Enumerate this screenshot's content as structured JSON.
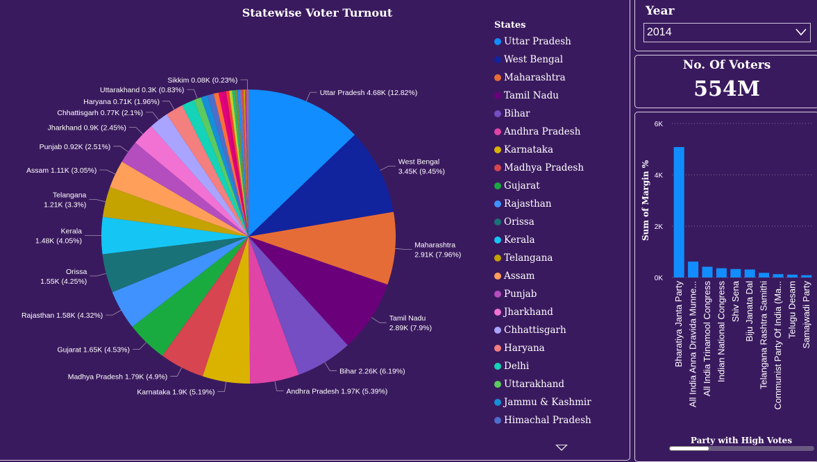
{
  "pie_panel": {
    "title": "Statewise Voter Turnout"
  },
  "legend": {
    "title": "States",
    "items": [
      {
        "label": "Uttar Pradesh",
        "color": "#118DFF"
      },
      {
        "label": "West Bengal",
        "color": "#12239E"
      },
      {
        "label": "Maharashtra",
        "color": "#E66C37"
      },
      {
        "label": "Tamil Nadu",
        "color": "#6B007B"
      },
      {
        "label": "Bihar",
        "color": "#744EC2"
      },
      {
        "label": "Andhra Pradesh",
        "color": "#E044A7"
      },
      {
        "label": "Karnataka",
        "color": "#D9B300"
      },
      {
        "label": "Madhya Pradesh",
        "color": "#D64550"
      },
      {
        "label": "Gujarat",
        "color": "#1AAB40"
      },
      {
        "label": "Rajasthan",
        "color": "#4092FF"
      },
      {
        "label": "Orissa",
        "color": "#197278"
      },
      {
        "label": "Kerala",
        "color": "#15C6F4"
      },
      {
        "label": "Telangana",
        "color": "#C4A200"
      },
      {
        "label": "Assam",
        "color": "#FF9F5A"
      },
      {
        "label": "Punjab",
        "color": "#B44EBF"
      },
      {
        "label": "Jharkhand",
        "color": "#F272D3"
      },
      {
        "label": "Chhattisgarh",
        "color": "#A9A4FF"
      },
      {
        "label": "Haryana",
        "color": "#F47F7F"
      },
      {
        "label": "Delhi",
        "color": "#15D3B8"
      },
      {
        "label": "Uttarakhand",
        "color": "#5CCB5F"
      },
      {
        "label": "Jammu & Kashmir",
        "color": "#1590D8"
      },
      {
        "label": "Himachal Pradesh",
        "color": "#4D6EC9"
      }
    ]
  },
  "year_filter": {
    "title": "Year",
    "selected": "2014"
  },
  "voters_card": {
    "title": "No. Of Voters",
    "value": "554M"
  },
  "bar_panel": {
    "ylabel": "Sum of Margin %",
    "xlabel": "Party with High Votes"
  },
  "chart_data": [
    {
      "type": "pie",
      "title": "Statewise Voter Turnout",
      "legend_title": "States",
      "legend_position": "right",
      "slices": [
        {
          "label": "Uttar Pradesh",
          "value": 4.68,
          "text": "Uttar Pradesh 4.68K (12.82%)",
          "color": "#118DFF"
        },
        {
          "label": "West Bengal",
          "value": 3.45,
          "text": "West Bengal 3.45K (9.45%)",
          "color": "#12239E"
        },
        {
          "label": "Maharashtra",
          "value": 2.91,
          "text": "Maharashtra 2.91K (7.96%)",
          "color": "#E66C37"
        },
        {
          "label": "Tamil Nadu",
          "value": 2.89,
          "text": "Tamil Nadu 2.89K (7.9%)",
          "color": "#6B007B"
        },
        {
          "label": "Bihar",
          "value": 2.26,
          "text": "Bihar 2.26K (6.19%)",
          "color": "#744EC2"
        },
        {
          "label": "Andhra Pradesh",
          "value": 1.97,
          "text": "Andhra Pradesh 1.97K (5.39%)",
          "color": "#E044A7"
        },
        {
          "label": "Karnataka",
          "value": 1.9,
          "text": "Karnataka 1.9K (5.19%)",
          "color": "#D9B300"
        },
        {
          "label": "Madhya Pradesh",
          "value": 1.79,
          "text": "Madhya Pradesh 1.79K (4.9%)",
          "color": "#D64550"
        },
        {
          "label": "Gujarat",
          "value": 1.65,
          "text": "Gujarat 1.65K (4.53%)",
          "color": "#1AAB40"
        },
        {
          "label": "Rajasthan",
          "value": 1.58,
          "text": "Rajasthan 1.58K (4.32%)",
          "color": "#4092FF"
        },
        {
          "label": "Orissa",
          "value": 1.55,
          "text": "Orissa 1.55K (4.25%)",
          "color": "#197278"
        },
        {
          "label": "Kerala",
          "value": 1.48,
          "text": "Kerala 1.48K (4.05%)",
          "color": "#15C6F4"
        },
        {
          "label": "Telangana",
          "value": 1.21,
          "text": "Telangana 1.21K (3.3%)",
          "color": "#C4A200"
        },
        {
          "label": "Assam",
          "value": 1.11,
          "text": "Assam 1.11K (3.05%)",
          "color": "#FF9F5A"
        },
        {
          "label": "Punjab",
          "value": 0.92,
          "text": "Punjab 0.92K (2.51%)",
          "color": "#B44EBF"
        },
        {
          "label": "Jharkhand",
          "value": 0.9,
          "text": "Jharkhand 0.9K (2.45%)",
          "color": "#F272D3"
        },
        {
          "label": "Chhattisgarh",
          "value": 0.77,
          "text": "Chhattisgarh 0.77K (2.1%)",
          "color": "#A9A4FF"
        },
        {
          "label": "Haryana",
          "value": 0.71,
          "text": "Haryana 0.71K (1.96%)",
          "color": "#F47F7F"
        },
        {
          "label": "Delhi",
          "value": 0.5,
          "text": "",
          "color": "#15D3B8"
        },
        {
          "label": "Uttarakhand",
          "value": 0.3,
          "text": "Uttarakhand 0.3K (0.83%)",
          "color": "#5CCB5F"
        },
        {
          "label": "Jammu & Kashmir",
          "value": 0.27,
          "text": "",
          "color": "#1590D8"
        },
        {
          "label": "Himachal Pradesh",
          "value": 0.25,
          "text": "",
          "color": "#4D6EC9"
        },
        {
          "label": "",
          "value": 0.2,
          "text": "",
          "color": "#FF6F3C"
        },
        {
          "label": "",
          "value": 0.16,
          "text": "",
          "color": "#E5007A"
        },
        {
          "label": "",
          "value": 0.14,
          "text": "",
          "color": "#D6007C"
        },
        {
          "label": "",
          "value": 0.12,
          "text": "",
          "color": "#FF3B30"
        },
        {
          "label": "",
          "value": 0.12,
          "text": "",
          "color": "#B8D430"
        },
        {
          "label": "",
          "value": 0.11,
          "text": "",
          "color": "#2BB673"
        },
        {
          "label": "",
          "value": 0.1,
          "text": "",
          "color": "#7A8C3A"
        },
        {
          "label": "",
          "value": 0.09,
          "text": "",
          "color": "#1E90FF"
        },
        {
          "label": "",
          "value": 0.08,
          "text": "",
          "color": "#8B6FA8"
        },
        {
          "label": "",
          "value": 0.07,
          "text": "",
          "color": "#E14A4A"
        },
        {
          "label": "",
          "value": 0.06,
          "text": "",
          "color": "#C3A000"
        },
        {
          "label": "",
          "value": 0.06,
          "text": "",
          "color": "#9A3FBF"
        },
        {
          "label": "Sikkim",
          "value": 0.08,
          "text": "Sikkim 0.08K (0.23%)",
          "color": "#E4574D"
        }
      ]
    },
    {
      "type": "bar",
      "xlabel": "Party with High Votes",
      "ylabel": "Sum of Margin %",
      "ylim": [
        0,
        6000
      ],
      "yticks": [
        "0K",
        "2K",
        "4K",
        "6K"
      ],
      "bar_color": "#118DFF",
      "categories": [
        "Bharatiya Janta Party",
        "All India Anna Dravida Munne...",
        "All India Trinamool Congress",
        "Indian National Congress",
        "Shiv Sena",
        "Biju Janata Dal",
        "Telangana Rashtra Samithi",
        "Communist Party Of India (Ma...",
        "Telugu Desam",
        "Samajwadi Party"
      ],
      "values": [
        5080,
        620,
        420,
        360,
        330,
        310,
        180,
        130,
        110,
        90
      ]
    }
  ]
}
